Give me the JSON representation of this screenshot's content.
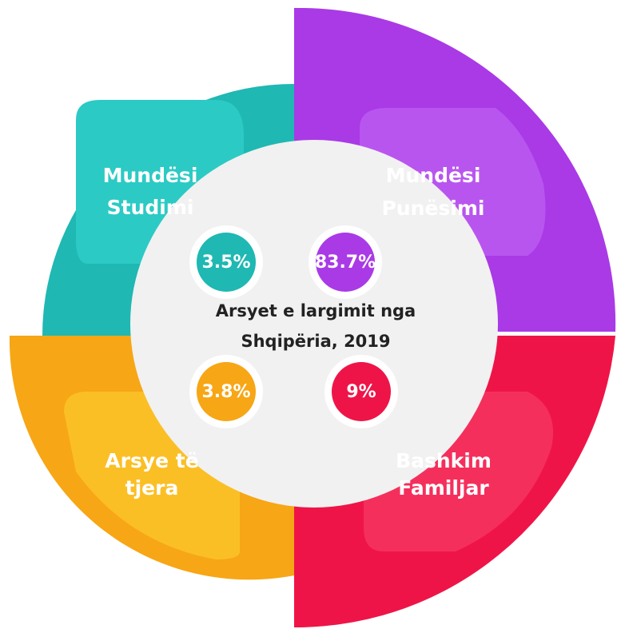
{
  "title_lines": [
    "Arsyet e largimit nga",
    "Shqipëria, 2019"
  ],
  "segments": [
    {
      "label_lines": [
        "Mundësi",
        "Studimi"
      ],
      "value": "3.5%"
    },
    {
      "label_lines": [
        "Mundësi",
        "Punësimi"
      ],
      "value": "83.7%"
    },
    {
      "label_lines": [
        "Arsye të",
        "tjera"
      ],
      "value": "3.8%"
    },
    {
      "label_lines": [
        "Bashkim",
        "Familjar"
      ],
      "value": "9%"
    }
  ]
}
